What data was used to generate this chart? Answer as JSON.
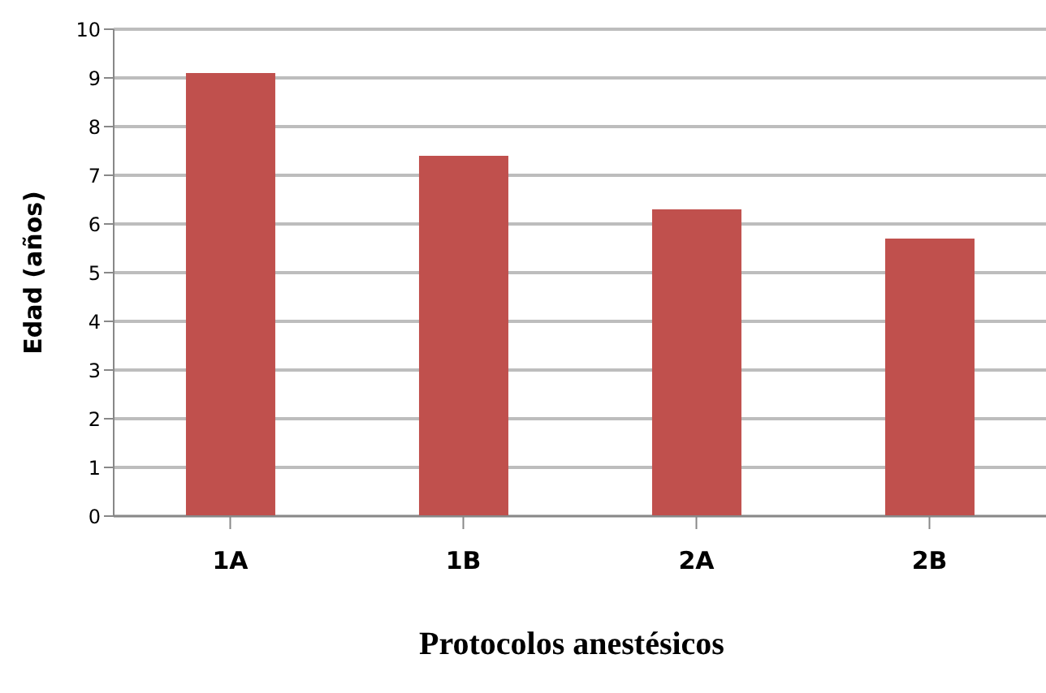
{
  "chart_data": {
    "type": "bar",
    "xlabel": "Protocolos anestésicos",
    "ylabel": "Edad (años)",
    "categories": [
      "1A",
      "1B",
      "2A",
      "2B"
    ],
    "values": [
      9.1,
      7.4,
      6.3,
      5.7
    ],
    "color": "#c0504d",
    "ylim": [
      0,
      10
    ],
    "yticks": [
      0,
      1,
      2,
      3,
      4,
      5,
      6,
      7,
      8,
      9,
      10
    ],
    "grid": "y"
  }
}
